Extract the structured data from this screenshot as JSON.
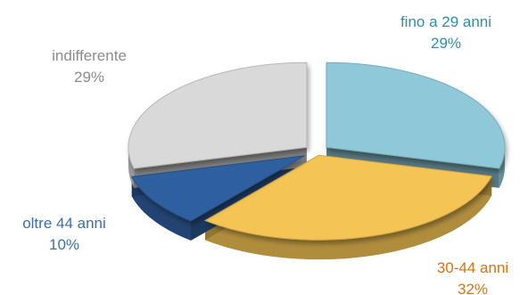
{
  "chart_data": {
    "type": "pie",
    "title": "",
    "slices": [
      {
        "name": "fino a 29 anni",
        "value": 29,
        "value_label": "29%",
        "color": "#8FC9D9",
        "label_color": "#2E8FA8"
      },
      {
        "name": "30-44 anni",
        "value": 32,
        "value_label": "32%",
        "color": "#F4C455",
        "label_color": "#E0700F"
      },
      {
        "name": "oltre 44 anni",
        "value": 10,
        "value_label": "10%",
        "color": "#2E5F9E",
        "label_color": "#3A6FB0"
      },
      {
        "name": "indifferente",
        "value": 29,
        "value_label": "29%",
        "color": "#D9D9D9",
        "label_color": "#8C8C8C"
      }
    ],
    "style": "3d-exploded"
  }
}
